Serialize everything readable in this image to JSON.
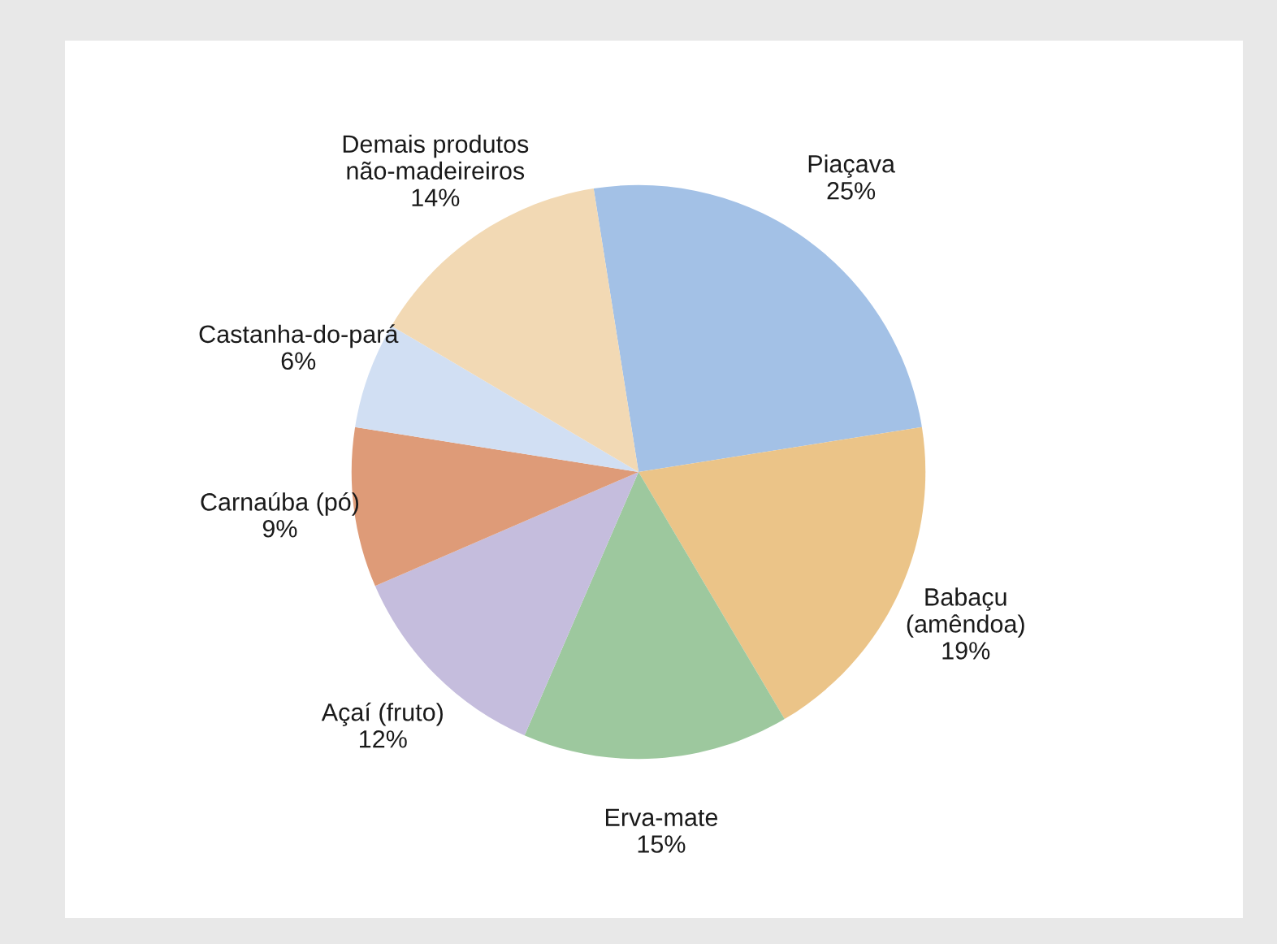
{
  "chart_data": {
    "type": "pie",
    "categories": [
      "Piaçava",
      "Babaçu\n(amêndoa)",
      "Erva-mate",
      "Açaí (fruto)",
      "Carnaúba (pó)",
      "Castanha-do-pará",
      "Demais produtos\nnão-madeireiros"
    ],
    "values": [
      25,
      19,
      15,
      12,
      9,
      6,
      14
    ],
    "colors": [
      "#a3c1e6",
      "#ebc488",
      "#9dc89e",
      "#c5bddd",
      "#de9b78",
      "#d1dff3",
      "#f2d9b4"
    ],
    "value_labels": [
      "25%",
      "19%",
      "15%",
      "12%",
      "9%",
      "6%",
      "14%"
    ],
    "legend": false
  }
}
